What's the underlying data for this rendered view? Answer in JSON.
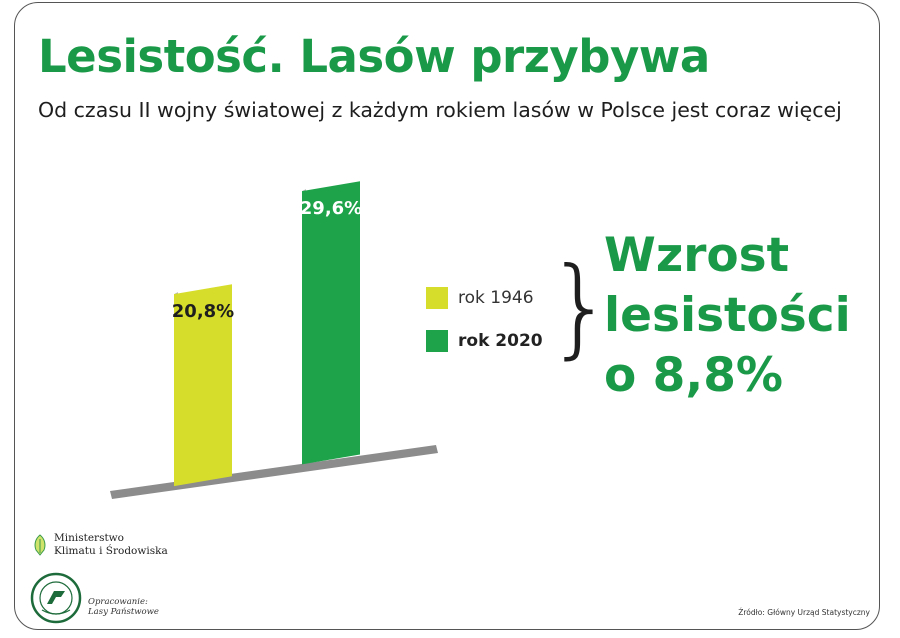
{
  "header": {
    "title": "Lesistość. Lasów przybywa",
    "subtitle": "Od czasu II wojny światowej z każdym rokiem lasów w Polsce jest coraz więcej"
  },
  "chart_data": {
    "type": "bar",
    "categories": [
      "rok 1946",
      "rok 2020"
    ],
    "values": [
      20.8,
      29.6
    ],
    "value_labels": [
      "20,8%",
      "29,6%"
    ],
    "unit": "%",
    "colors": [
      "#d6de2b",
      "#1ea34a"
    ],
    "legend": [
      {
        "label": "rok 1946",
        "color": "#d6de2b"
      },
      {
        "label": "rok 2020",
        "color": "#1ea34a"
      }
    ],
    "legend_placement": "right",
    "grid": false,
    "title": "",
    "xlabel": "",
    "ylabel": ""
  },
  "callout": {
    "brace": "}",
    "lines": [
      "Wzrost",
      "lesistości",
      "o 8,8%"
    ]
  },
  "footer": {
    "ministry_lines": [
      "Ministerstwo",
      "Klimatu i Środowiska"
    ],
    "logo_text": "LASY PAŃSTWOWE",
    "prepared_lines": [
      "Opracowanie:",
      "Lasy Państwowe"
    ],
    "source": "Źródło: Główny Urząd Statystyczny"
  }
}
